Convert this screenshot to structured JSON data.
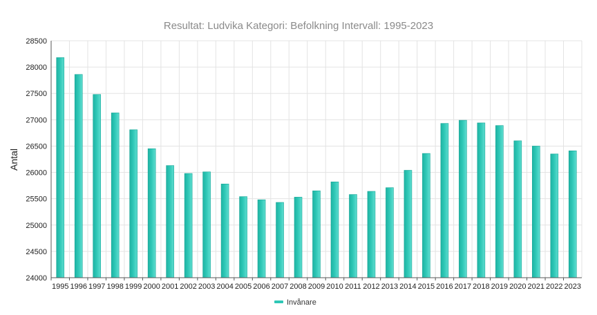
{
  "chart_data": {
    "type": "bar",
    "title": "Resultat: Ludvika Kategori: Befolkning Intervall: 1995-2023",
    "xlabel": "",
    "ylabel": "Antal",
    "ylim": [
      24000,
      28500
    ],
    "yticks": [
      24000,
      24500,
      25000,
      25500,
      26000,
      26500,
      27000,
      27500,
      28000,
      28500
    ],
    "grid": true,
    "legend_position": "bottom-center",
    "bar_color": "#2ec7b6",
    "categories": [
      "1995",
      "1996",
      "1997",
      "1998",
      "1999",
      "2000",
      "2001",
      "2002",
      "2003",
      "2004",
      "2005",
      "2006",
      "2007",
      "2008",
      "2009",
      "2010",
      "2011",
      "2012",
      "2013",
      "2014",
      "2015",
      "2016",
      "2017",
      "2018",
      "2019",
      "2020",
      "2021",
      "2022",
      "2023"
    ],
    "series": [
      {
        "name": "Invånare",
        "values": [
          28180,
          27860,
          27480,
          27130,
          26810,
          26450,
          26130,
          25980,
          26010,
          25780,
          25540,
          25480,
          25430,
          25530,
          25650,
          25820,
          25580,
          25640,
          25710,
          26040,
          26360,
          26930,
          26990,
          26940,
          26890,
          26600,
          26500,
          26350,
          26410
        ]
      }
    ]
  }
}
